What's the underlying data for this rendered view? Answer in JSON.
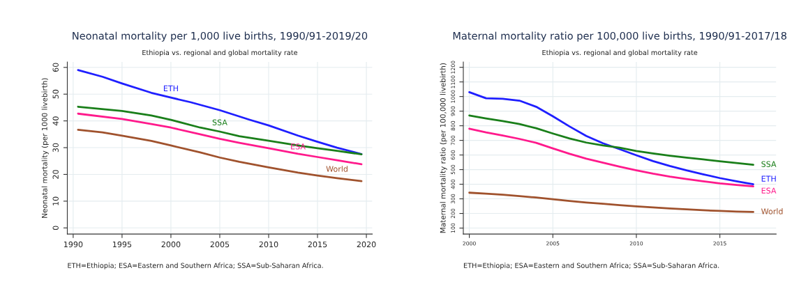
{
  "chart_data": [
    {
      "type": "line",
      "title": "Neonatal mortality per 1,000 live births, 1990/91-2019/20",
      "subtitle": "Ethiopia vs. regional and global mortality rate",
      "ylabel": "Neonatal mortality (per 1000 livebirth)",
      "xlim": [
        1989.4,
        2020.6
      ],
      "xticks": [
        1990,
        1995,
        2000,
        2005,
        2010,
        2015,
        2020
      ],
      "ylim": [
        -2.3,
        62
      ],
      "yticks": [
        0,
        10,
        20,
        30,
        40,
        50,
        60
      ],
      "grid": true,
      "legend": false,
      "annotations": [
        "ETH=Ethiopia; ESA=Eastern and Southern Africa; SSA=Sub-Saharan Africa."
      ],
      "series": [
        {
          "name": "ETH",
          "color": "#1f1fff",
          "x": [
            1990.5,
            1993,
            1995,
            1998,
            2000,
            2002,
            2005,
            2008,
            2010,
            2013,
            2015,
            2017,
            2019.5
          ],
          "values": [
            59,
            56.5,
            54,
            50.5,
            48.7,
            47,
            44,
            40.5,
            38.3,
            34.5,
            32.2,
            30,
            27.6
          ]
        },
        {
          "name": "SSA",
          "color": "#1a7f1a",
          "x": [
            1990.5,
            1995,
            1998,
            2000,
            2003,
            2005,
            2007,
            2010,
            2013,
            2015,
            2017,
            2019.5
          ],
          "values": [
            45.3,
            43.7,
            42,
            40.4,
            37.5,
            36,
            34.3,
            32.6,
            30.8,
            29.8,
            28.8,
            27.5
          ]
        },
        {
          "name": "ESA",
          "color": "#ff1a8c",
          "x": [
            1990.5,
            1995,
            1998,
            2000,
            2003,
            2005,
            2007,
            2010,
            2013,
            2015,
            2017,
            2019.5
          ],
          "values": [
            42.7,
            40.7,
            38.8,
            37.5,
            35,
            33.3,
            31.8,
            29.8,
            27.7,
            26.5,
            25.3,
            23.8
          ]
        },
        {
          "name": "World",
          "color": "#a0522d",
          "x": [
            1990.5,
            1993,
            1995,
            1998,
            2000,
            2003,
            2005,
            2007,
            2010,
            2013,
            2015,
            2017,
            2019.5
          ],
          "values": [
            36.7,
            35.7,
            34.5,
            32.5,
            30.8,
            28.2,
            26.3,
            24.7,
            22.6,
            20.7,
            19.6,
            18.6,
            17.5
          ]
        }
      ]
    },
    {
      "type": "line",
      "title": "Maternal mortality ratio per 100,000 live births, 1990/91-2017/18",
      "subtitle": "Ethiopia vs. regional and global mortality rate",
      "ylabel": "Maternal mortality ratio (per 100,000 livebirth)",
      "xlim": [
        1999.64,
        2018.37
      ],
      "xticks": [
        2000,
        2005,
        2010,
        2015
      ],
      "ylim": [
        59,
        1236
      ],
      "yticks": [
        100,
        200,
        300,
        400,
        500,
        600,
        700,
        800,
        900,
        1000,
        1100,
        1200
      ],
      "grid": true,
      "legend": false,
      "annotations": [
        "ETH=Ethiopia; ESA=Eastern and Southern Africa; SSA=Sub-Saharan Africa."
      ],
      "x": [
        2000,
        2001,
        2002,
        2003,
        2004,
        2005,
        2006,
        2007,
        2008,
        2009,
        2010,
        2011,
        2012,
        2013,
        2014,
        2015,
        2016,
        2017
      ],
      "series": [
        {
          "name": "ETH",
          "color": "#1f1fff",
          "values": [
            1030,
            988,
            985,
            972,
            930,
            865,
            795,
            730,
            680,
            640,
            598,
            558,
            525,
            495,
            468,
            442,
            420,
            400
          ]
        },
        {
          "name": "SSA",
          "color": "#1a7f1a",
          "values": [
            870,
            850,
            832,
            812,
            783,
            747,
            713,
            685,
            665,
            650,
            627,
            610,
            595,
            582,
            570,
            557,
            545,
            533
          ]
        },
        {
          "name": "ESA",
          "color": "#ff1a8c",
          "values": [
            780,
            755,
            733,
            710,
            683,
            645,
            608,
            575,
            547,
            520,
            495,
            472,
            452,
            435,
            420,
            406,
            395,
            385
          ]
        },
        {
          "name": "World",
          "color": "#a0522d",
          "values": [
            342,
            335,
            328,
            319,
            309,
            297,
            285,
            275,
            266,
            257,
            248,
            241,
            234,
            228,
            222,
            217,
            213,
            210
          ]
        }
      ]
    }
  ]
}
